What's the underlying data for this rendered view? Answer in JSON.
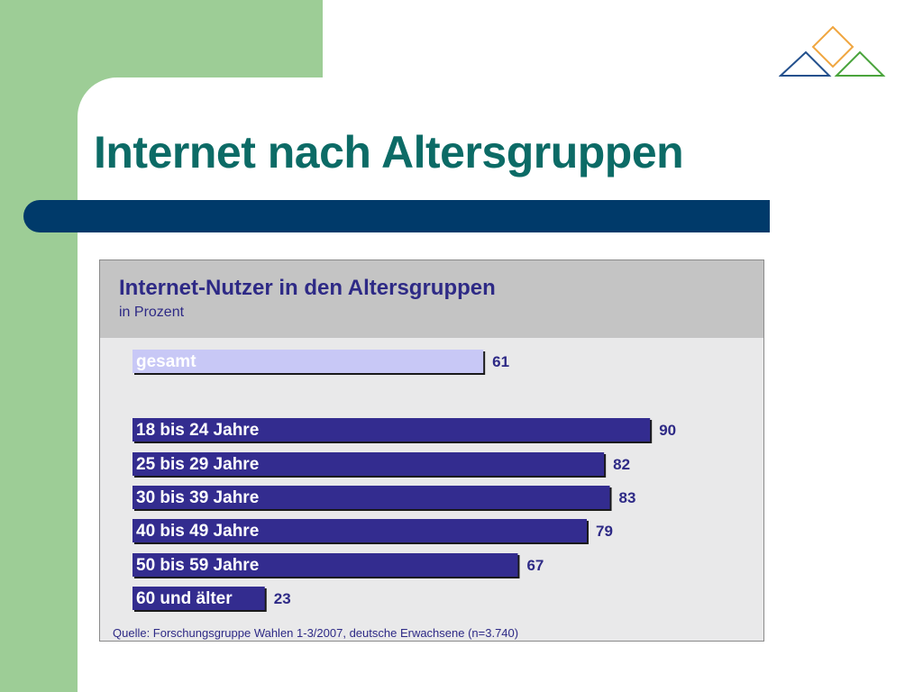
{
  "slide": {
    "title": "Internet nach Altersgruppen"
  },
  "colors": {
    "panel_green": "#9dcd96",
    "title_teal": "#0c6b66",
    "bar_navy": "#003a6a",
    "bar_blue": "#332c8f",
    "bar_light": "#c8c8f6"
  },
  "logo": {
    "icon": "triangles-diamond-logo"
  },
  "chart_data": {
    "type": "bar",
    "orientation": "horizontal",
    "title": "Internet-Nutzer in den Altersgruppen",
    "subtitle": "in Prozent",
    "categories": [
      "gesamt",
      "18 bis 24 Jahre",
      "25 bis 29 Jahre",
      "30 bis 39 Jahre",
      "40 bis 49 Jahre",
      "50 bis 59 Jahre",
      "60 und älter"
    ],
    "values": [
      61,
      90,
      82,
      83,
      79,
      67,
      23
    ],
    "value_labels": [
      "61",
      "90",
      "82",
      "83",
      "79",
      "67",
      "23"
    ],
    "unit": "%",
    "xlim": [
      0,
      100
    ],
    "grid": false,
    "legend": "none",
    "source": "Quelle: Forschungsgruppe Wahlen 1-3/2007, deutsche Erwachsene (n=3.740)"
  }
}
